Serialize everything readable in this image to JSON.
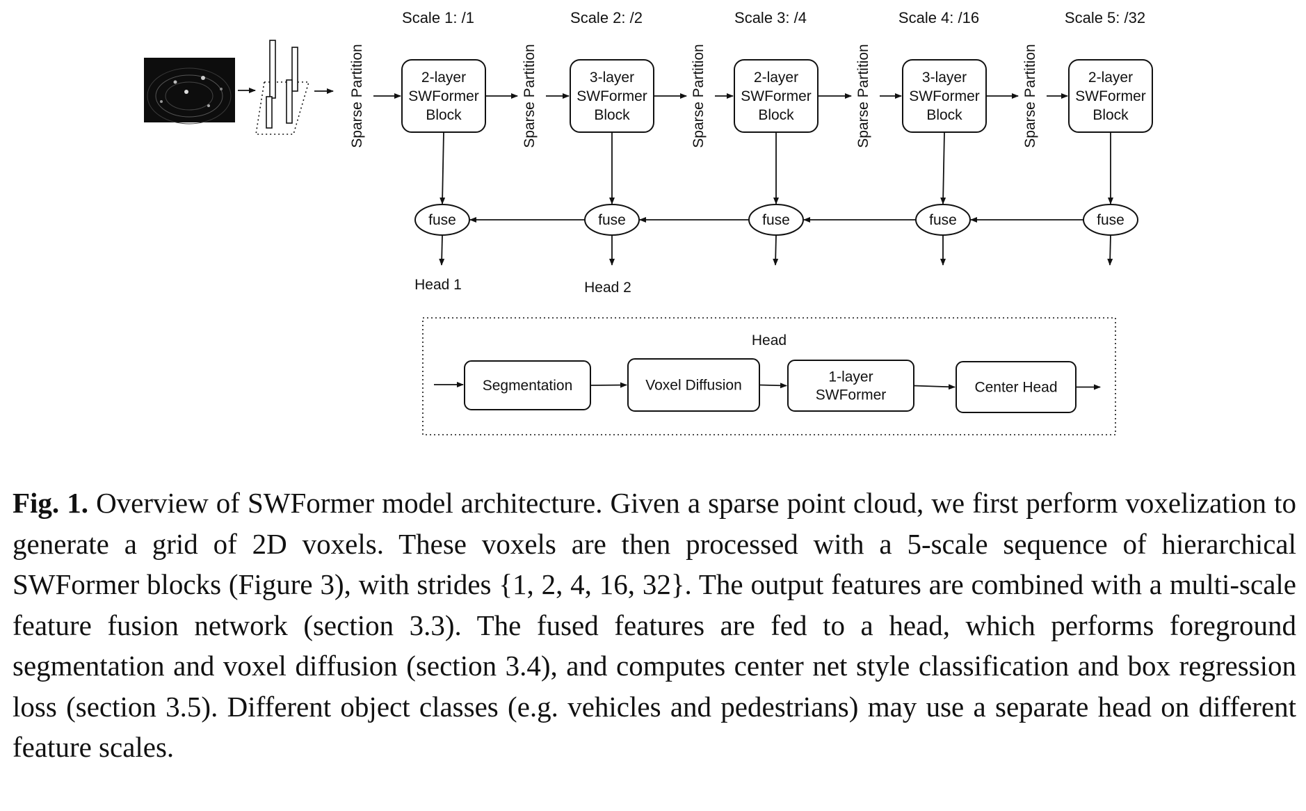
{
  "scales": [
    "Scale 1: /1",
    "Scale 2: /2",
    "Scale 3: /4",
    "Scale 4: /16",
    "Scale 5: /32"
  ],
  "sparse_partition_label": "Sparse Partition",
  "blocks": [
    [
      "2-layer",
      "SWFormer",
      "Block"
    ],
    [
      "3-layer",
      "SWFormer",
      "Block"
    ],
    [
      "2-layer",
      "SWFormer",
      "Block"
    ],
    [
      "3-layer",
      "SWFormer",
      "Block"
    ],
    [
      "2-layer",
      "SWFormer",
      "Block"
    ]
  ],
  "fuse_label": "fuse",
  "outputs": [
    "Head 1",
    "Head 2"
  ],
  "head": {
    "title": "Head",
    "stages": [
      "Segmentation",
      "Voxel Diffusion",
      [
        "1-layer",
        "SWFormer"
      ],
      "Center Head"
    ]
  },
  "caption": {
    "figure_label": "Fig. 1.",
    "text": "Overview of SWFormer model architecture. Given a sparse point cloud, we first perform voxelization to generate a grid of 2D voxels. These voxels are then processed with a 5-scale sequence of hierarchical SWFormer blocks (Figure 3), with strides {1, 2, 4, 16, 32}. The output features are combined with a multi-scale feature fusion network (section 3.3). The fused features are fed to a head, which performs foreground segmentation and voxel diffusion (section 3.4), and computes center net style classification and box regression loss (section 3.5). Different object classes (e.g. vehicles and pedestrians) may use a separate head on different feature scales."
  }
}
